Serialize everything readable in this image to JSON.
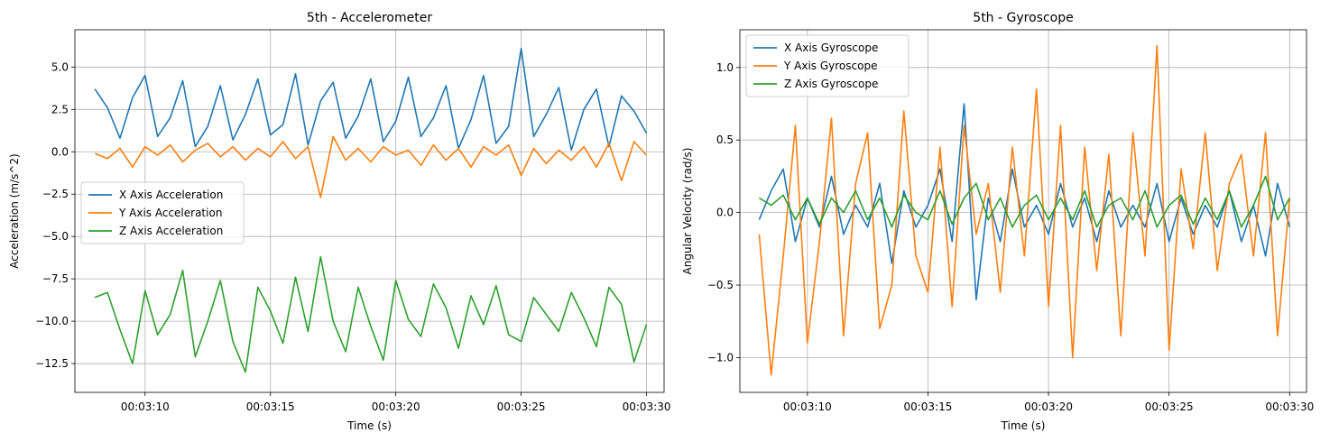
{
  "chart_data": [
    {
      "type": "line",
      "title": "5th - Accelerometer",
      "xlabel": "Time (s)",
      "ylabel": "Acceleration (m/s^2)",
      "xlim": [
        "00:03:07.2",
        "00:03:30.7"
      ],
      "ylim": [
        -14.2,
        7.2
      ],
      "xticks": [
        "00:03:10",
        "00:03:15",
        "00:03:20",
        "00:03:25",
        "00:03:30"
      ],
      "yticks": [
        5.0,
        2.5,
        0.0,
        -2.5,
        -5.0,
        -7.5,
        -10.0,
        -12.5
      ],
      "ytick_labels": [
        "5.0",
        "2.5",
        "0.0",
        "−2.5",
        "−5.0",
        "−7.5",
        "−10.0",
        "−12.5"
      ],
      "grid": true,
      "legend_position": "center-left",
      "x": [
        "00:03:08.0",
        "00:03:08.5",
        "00:03:09.0",
        "00:03:09.5",
        "00:03:10.0",
        "00:03:10.5",
        "00:03:11.0",
        "00:03:11.5",
        "00:03:12.0",
        "00:03:12.5",
        "00:03:13.0",
        "00:03:13.5",
        "00:03:14.0",
        "00:03:14.5",
        "00:03:15.0",
        "00:03:15.5",
        "00:03:16.0",
        "00:03:16.5",
        "00:03:17.0",
        "00:03:17.5",
        "00:03:18.0",
        "00:03:18.5",
        "00:03:19.0",
        "00:03:19.5",
        "00:03:20.0",
        "00:03:20.5",
        "00:03:21.0",
        "00:03:21.5",
        "00:03:22.0",
        "00:03:22.5",
        "00:03:23.0",
        "00:03:23.5",
        "00:03:24.0",
        "00:03:24.5",
        "00:03:25.0",
        "00:03:25.5",
        "00:03:26.0",
        "00:03:26.5",
        "00:03:27.0",
        "00:03:27.5",
        "00:03:28.0",
        "00:03:28.5",
        "00:03:29.0",
        "00:03:29.5",
        "00:03:30.0"
      ],
      "series": [
        {
          "name": "X Axis Acceleration",
          "color": "#1f77b4",
          "values": [
            3.7,
            2.6,
            0.8,
            3.2,
            4.5,
            0.9,
            2.0,
            4.2,
            0.3,
            1.5,
            3.9,
            0.7,
            2.2,
            4.3,
            1.0,
            1.6,
            4.6,
            0.4,
            3.0,
            4.1,
            0.8,
            2.1,
            4.3,
            0.6,
            1.8,
            4.4,
            0.9,
            2.0,
            3.9,
            0.2,
            1.9,
            4.5,
            0.5,
            1.5,
            6.1,
            0.9,
            2.2,
            3.8,
            0.1,
            2.5,
            3.7,
            0.3,
            3.3,
            2.4,
            1.1
          ]
        },
        {
          "name": "Y Axis Acceleration",
          "color": "#ff7f0e",
          "values": [
            -0.1,
            -0.4,
            0.2,
            -0.9,
            0.3,
            -0.2,
            0.4,
            -0.6,
            0.1,
            0.5,
            -0.3,
            0.3,
            -0.5,
            0.2,
            -0.3,
            0.6,
            -0.4,
            0.3,
            -2.7,
            0.9,
            -0.5,
            0.2,
            -0.6,
            0.3,
            -0.2,
            0.1,
            -0.8,
            0.4,
            -0.5,
            0.2,
            -0.9,
            0.3,
            -0.2,
            0.4,
            -1.4,
            0.2,
            -0.7,
            0.1,
            -0.5,
            0.3,
            -0.9,
            0.5,
            -1.7,
            0.6,
            -0.2
          ]
        },
        {
          "name": "Z Axis Acceleration",
          "color": "#2ca02c",
          "values": [
            -8.6,
            -8.3,
            -10.5,
            -12.5,
            -8.2,
            -10.8,
            -9.6,
            -7.0,
            -12.1,
            -10.0,
            -7.6,
            -11.2,
            -13.0,
            -8.0,
            -9.4,
            -11.3,
            -7.4,
            -10.6,
            -6.2,
            -10.0,
            -11.8,
            -8.0,
            -10.3,
            -12.3,
            -7.6,
            -9.9,
            -10.9,
            -7.8,
            -9.2,
            -11.6,
            -8.5,
            -10.2,
            -7.9,
            -10.8,
            -11.2,
            -8.6,
            -9.6,
            -10.6,
            -8.3,
            -9.8,
            -11.5,
            -8.0,
            -9.0,
            -12.4,
            -10.2
          ]
        }
      ]
    },
    {
      "type": "line",
      "title": "5th - Gyroscope",
      "xlabel": "Time (s)",
      "ylabel": "Angular Velocity (rad/s)",
      "xlim": [
        "00:03:07.2",
        "00:03:30.7"
      ],
      "ylim": [
        -1.24,
        1.26
      ],
      "xticks": [
        "00:03:10",
        "00:03:15",
        "00:03:20",
        "00:03:25",
        "00:03:30"
      ],
      "yticks": [
        1.0,
        0.5,
        0.0,
        -0.5,
        -1.0
      ],
      "ytick_labels": [
        "1.0",
        "0.5",
        "0.0",
        "−0.5",
        "−1.0"
      ],
      "grid": true,
      "legend_position": "top-left",
      "x": [
        "00:03:08.0",
        "00:03:08.5",
        "00:03:09.0",
        "00:03:09.5",
        "00:03:10.0",
        "00:03:10.5",
        "00:03:11.0",
        "00:03:11.5",
        "00:03:12.0",
        "00:03:12.5",
        "00:03:13.0",
        "00:03:13.5",
        "00:03:14.0",
        "00:03:14.5",
        "00:03:15.0",
        "00:03:15.5",
        "00:03:16.0",
        "00:03:16.5",
        "00:03:17.0",
        "00:03:17.5",
        "00:03:18.0",
        "00:03:18.5",
        "00:03:19.0",
        "00:03:19.5",
        "00:03:20.0",
        "00:03:20.5",
        "00:03:21.0",
        "00:03:21.5",
        "00:03:22.0",
        "00:03:22.5",
        "00:03:23.0",
        "00:03:23.5",
        "00:03:24.0",
        "00:03:24.5",
        "00:03:25.0",
        "00:03:25.5",
        "00:03:26.0",
        "00:03:26.5",
        "00:03:27.0",
        "00:03:27.5",
        "00:03:28.0",
        "00:03:28.5",
        "00:03:29.0",
        "00:03:29.5",
        "00:03:30.0"
      ],
      "series": [
        {
          "name": "X Axis Gyroscope",
          "color": "#1f77b4",
          "values": [
            -0.05,
            0.15,
            0.3,
            -0.2,
            0.1,
            -0.1,
            0.25,
            -0.15,
            0.05,
            -0.1,
            0.2,
            -0.35,
            0.15,
            -0.1,
            0.05,
            0.3,
            -0.2,
            0.75,
            -0.6,
            0.1,
            -0.2,
            0.3,
            -0.1,
            0.05,
            -0.15,
            0.2,
            -0.1,
            0.1,
            -0.2,
            0.15,
            -0.1,
            0.05,
            -0.1,
            0.2,
            -0.2,
            0.1,
            -0.15,
            0.05,
            -0.1,
            0.15,
            -0.2,
            0.05,
            -0.3,
            0.2,
            -0.1
          ]
        },
        {
          "name": "Y Axis Gyroscope",
          "color": "#ff7f0e",
          "values": [
            -0.15,
            -1.12,
            -0.3,
            0.6,
            -0.9,
            -0.2,
            0.65,
            -0.85,
            0.2,
            0.55,
            -0.8,
            -0.5,
            0.7,
            -0.3,
            -0.55,
            0.45,
            -0.65,
            0.6,
            -0.15,
            0.2,
            -0.55,
            0.45,
            -0.3,
            0.85,
            -0.65,
            0.6,
            -1.0,
            0.45,
            -0.4,
            0.4,
            -0.85,
            0.55,
            -0.3,
            1.15,
            -0.95,
            0.3,
            -0.25,
            0.55,
            -0.4,
            0.2,
            0.4,
            -0.3,
            0.55,
            -0.85,
            0.1
          ]
        },
        {
          "name": "Z Axis Gyroscope",
          "color": "#2ca02c",
          "values": [
            0.1,
            0.05,
            0.12,
            -0.05,
            0.1,
            -0.08,
            0.1,
            0.0,
            0.15,
            -0.05,
            0.1,
            -0.1,
            0.12,
            0.0,
            -0.05,
            0.15,
            -0.08,
            0.1,
            0.2,
            -0.05,
            0.1,
            -0.1,
            0.05,
            0.12,
            -0.05,
            0.1,
            -0.05,
            0.15,
            -0.1,
            0.05,
            0.1,
            -0.05,
            0.15,
            -0.1,
            0.05,
            0.12,
            -0.08,
            0.1,
            -0.05,
            0.15,
            -0.1,
            0.05,
            0.25,
            -0.05,
            0.1
          ]
        }
      ]
    }
  ]
}
